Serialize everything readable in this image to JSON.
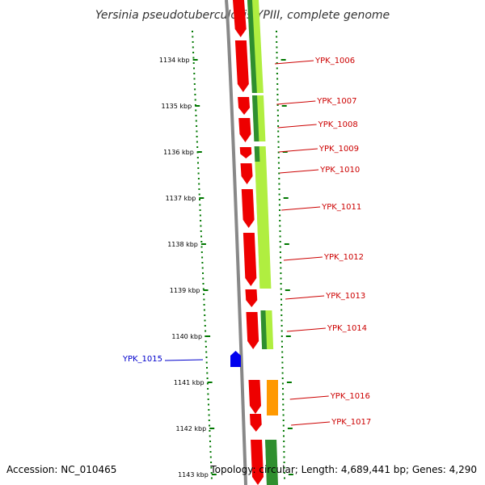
{
  "title": "Yersinia pseudotuberculosis YPIII, complete genome",
  "accession": "Accession: NC_010465",
  "topology": "Topology: circular; Length: 4,689,441 bp; Genes: 4,290",
  "colors": {
    "plus_strand_gene": "#ee0000",
    "minus_strand_gene": "#0000ee",
    "label_plus": "#cc0000",
    "label_minus": "#0000cc",
    "backbone": "#888888",
    "ticks": "#007700",
    "gc_high": "#2f8f2f",
    "gc_low": "#b0ee40",
    "orange_feature": "#ff9900"
  },
  "scale": {
    "unit": "kbp",
    "labels": [
      "1134 kbp",
      "1135 kbp",
      "1136 kbp",
      "1137 kbp",
      "1138 kbp",
      "1139 kbp",
      "1140 kbp",
      "1141 kbp",
      "1142 kbp",
      "1143 kbp"
    ]
  },
  "genes": [
    {
      "label": "YPK_1006",
      "strand": "+"
    },
    {
      "label": "YPK_1007",
      "strand": "+"
    },
    {
      "label": "YPK_1008",
      "strand": "+"
    },
    {
      "label": "YPK_1009",
      "strand": "+"
    },
    {
      "label": "YPK_1010",
      "strand": "+"
    },
    {
      "label": "YPK_1011",
      "strand": "+"
    },
    {
      "label": "YPK_1012",
      "strand": "+"
    },
    {
      "label": "YPK_1013",
      "strand": "+"
    },
    {
      "label": "YPK_1014",
      "strand": "+"
    },
    {
      "label": "YPK_1015",
      "strand": "-"
    },
    {
      "label": "YPK_1016",
      "strand": "+"
    },
    {
      "label": "YPK_1017",
      "strand": "+"
    }
  ]
}
